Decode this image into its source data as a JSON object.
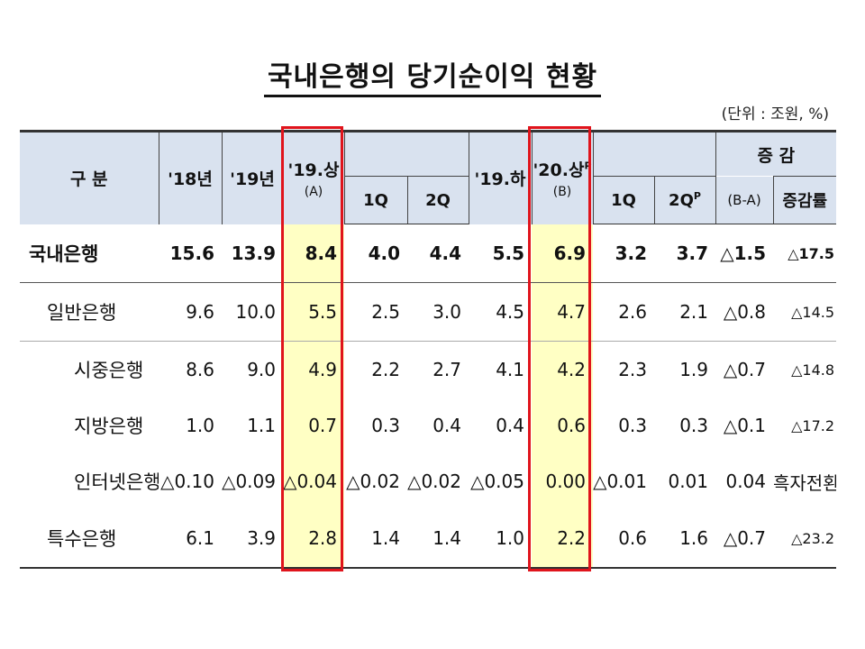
{
  "title": "국내은행의 당기순이익 현황",
  "unit": "(단위 : 조원, %)",
  "header": {
    "category": "구 분",
    "y18": "'18년",
    "y19": "'19년",
    "h19": "'19.상",
    "h19_note": "(A)",
    "q1": "1Q",
    "q2": "2Q",
    "h19b": "'19.하",
    "h20": "'20.상",
    "h20_sup": "P",
    "h20_note": "(B)",
    "q1b": "1Q",
    "q2b": "2Q",
    "q2b_sup": "P",
    "change": "증 감",
    "change_note": "(B-A)",
    "change_rate": "증감률"
  },
  "rows": [
    {
      "name": "국내은행",
      "v": [
        "15.6",
        "13.9",
        "8.4",
        "4.0",
        "4.4",
        "5.5",
        "6.9",
        "3.2",
        "3.7",
        "△1.5",
        "△17.5"
      ]
    },
    {
      "name": "일반은행",
      "v": [
        "9.6",
        "10.0",
        "5.5",
        "2.5",
        "3.0",
        "4.5",
        "4.7",
        "2.6",
        "2.1",
        "△0.8",
        "△14.5"
      ]
    },
    {
      "name": "시중은행",
      "v": [
        "8.6",
        "9.0",
        "4.9",
        "2.2",
        "2.7",
        "4.1",
        "4.2",
        "2.3",
        "1.9",
        "△0.7",
        "△14.8"
      ]
    },
    {
      "name": "지방은행",
      "v": [
        "1.0",
        "1.1",
        "0.7",
        "0.3",
        "0.4",
        "0.4",
        "0.6",
        "0.3",
        "0.3",
        "△0.1",
        "△17.2"
      ]
    },
    {
      "name": "인터넷은행",
      "v": [
        "△0.10",
        "△0.09",
        "△0.04",
        "△0.02",
        "△0.02",
        "△0.05",
        "0.00",
        "△0.01",
        "0.01",
        "0.04",
        "흑자전환"
      ]
    },
    {
      "name": "특수은행",
      "v": [
        "6.1",
        "3.9",
        "2.8",
        "1.4",
        "1.4",
        "1.0",
        "2.2",
        "0.6",
        "1.6",
        "△0.7",
        "△23.2"
      ]
    }
  ],
  "colors": {
    "header_bg": "#d9e2ef",
    "highlight": "#ffffc4",
    "box": "#e0141c"
  }
}
